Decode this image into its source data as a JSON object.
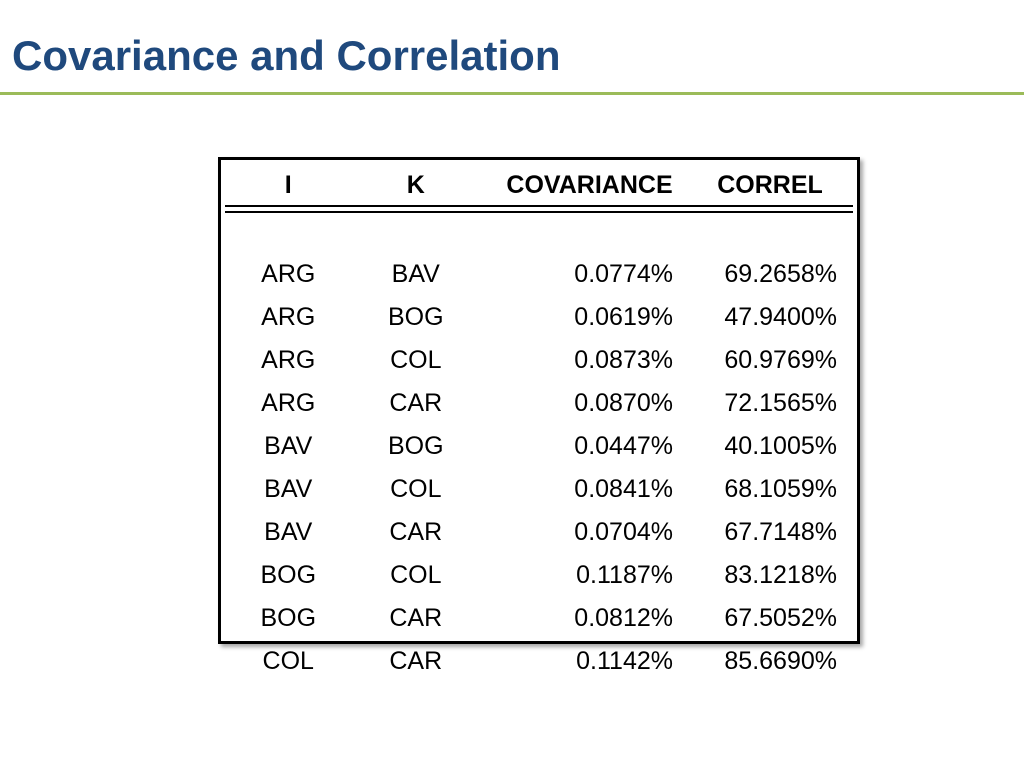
{
  "slide": {
    "title": "Covariance and Correlation"
  },
  "table": {
    "headers": {
      "i": "I",
      "k": "K",
      "covariance": "COVARIANCE",
      "correl": "CORREL"
    },
    "rows": [
      {
        "i": "ARG",
        "k": "BAV",
        "covariance": "0.0774%",
        "correl": "69.2658%"
      },
      {
        "i": "ARG",
        "k": "BOG",
        "covariance": "0.0619%",
        "correl": "47.9400%"
      },
      {
        "i": "ARG",
        "k": "COL",
        "covariance": "0.0873%",
        "correl": "60.9769%"
      },
      {
        "i": "ARG",
        "k": "CAR",
        "covariance": "0.0870%",
        "correl": "72.1565%"
      },
      {
        "i": "BAV",
        "k": "BOG",
        "covariance": "0.0447%",
        "correl": "40.1005%"
      },
      {
        "i": "BAV",
        "k": "COL",
        "covariance": "0.0841%",
        "correl": "68.1059%"
      },
      {
        "i": "BAV",
        "k": "CAR",
        "covariance": "0.0704%",
        "correl": "67.7148%"
      },
      {
        "i": "BOG",
        "k": "COL",
        "covariance": "0.1187%",
        "correl": "83.1218%"
      },
      {
        "i": "BOG",
        "k": "CAR",
        "covariance": "0.0812%",
        "correl": "67.5052%"
      },
      {
        "i": "COL",
        "k": "CAR",
        "covariance": "0.1142%",
        "correl": "85.6690%"
      }
    ]
  },
  "colors": {
    "title": "#1f497d",
    "rule": "#9bbb59",
    "border": "#000000"
  }
}
